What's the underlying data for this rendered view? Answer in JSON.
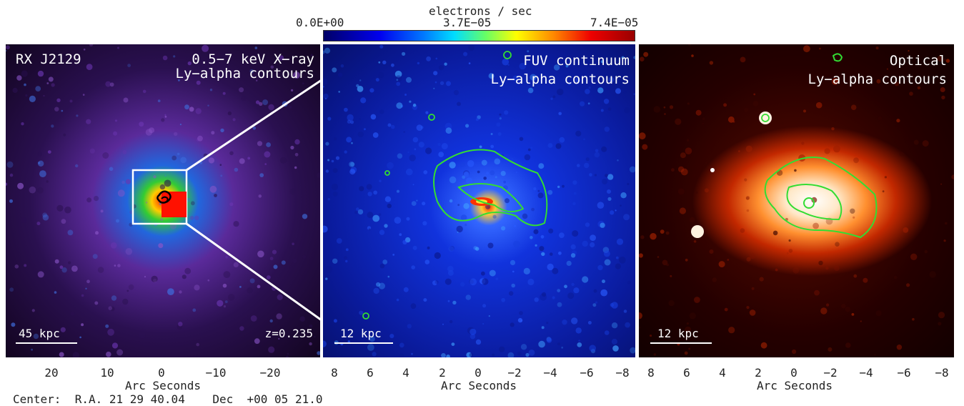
{
  "colorbar": {
    "title": "electrons / sec",
    "min_label": "0.0E+00",
    "mid_label": "3.7E−05",
    "max_label": "7.4E−05"
  },
  "panels": {
    "xray": {
      "title": "RX J2129",
      "label1": "0.5−7 keV X−ray",
      "label2": "Ly−alpha contours",
      "scale": "45 kpc",
      "redshift": "z=0.235",
      "ticks": [
        "20",
        "10",
        "0",
        "−10",
        "−20"
      ],
      "axis_label": "Arc Seconds"
    },
    "fuv": {
      "label1": "FUV continuum",
      "label2": "Ly−alpha contours",
      "scale": "12 kpc",
      "ticks": [
        "8",
        "6",
        "4",
        "2",
        "0",
        "−2",
        "−4",
        "−6",
        "−8"
      ],
      "axis_label": "Arc Seconds"
    },
    "optical": {
      "label1": "Optical",
      "label2": "Ly−alpha contours",
      "scale": "12 kpc",
      "ticks": [
        "8",
        "6",
        "4",
        "2",
        "0",
        "−2",
        "−4",
        "−6",
        "−8"
      ],
      "axis_label": "Arc Seconds"
    }
  },
  "footer": {
    "center": "Center:  R.A. 21 29 40.04    Dec  +00 05 21.0"
  },
  "colors": {
    "contour": "#33dd33",
    "xray_contour": "#000000",
    "text": "#ffffff"
  }
}
